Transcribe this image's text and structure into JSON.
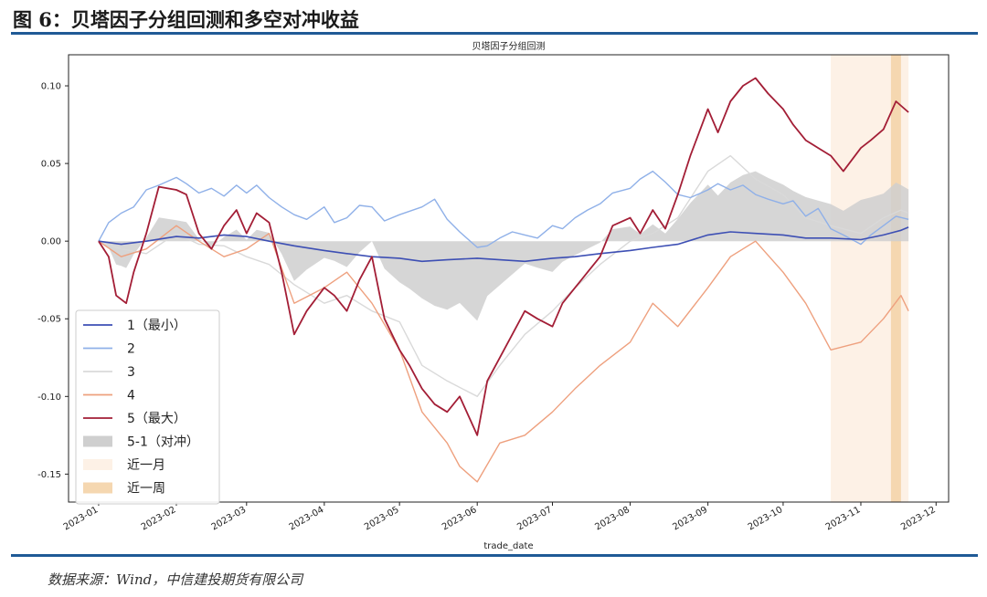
{
  "header": {
    "figure_title": "图 6：贝塔因子分组回测和多空对冲收益"
  },
  "footer": {
    "source": "数据来源：Wind，中信建投期货有限公司"
  },
  "chart_data": {
    "type": "line",
    "title": "贝塔因子分组回测",
    "xlabel": "trade_date",
    "ylabel": "",
    "x_ticks": [
      "2023-01",
      "2023-02",
      "2023-03",
      "2023-04",
      "2023-05",
      "2023-06",
      "2023-07",
      "2023-08",
      "2023-09",
      "2023-10",
      "2023-11",
      "2023-12"
    ],
    "y_ticks": [
      "0.10",
      "0.05",
      "0.00",
      "-0.05",
      "-0.10",
      "-0.15"
    ],
    "xlim": [
      "2022-12-20",
      "2023-12-06"
    ],
    "ylim": [
      -0.168,
      0.12
    ],
    "grid": false,
    "legend_position": "lower-left",
    "shaded_regions": [
      {
        "label": "近一月",
        "start": "2023-10-20",
        "end": "2023-11-20",
        "color": "#fdf1e6"
      },
      {
        "label": "近一周",
        "start": "2023-11-13",
        "end": "2023-11-17",
        "color": "#f5d7b0"
      }
    ],
    "hedge_series": {
      "name": "5-1（对冲）",
      "color": "#cfcfcf"
    },
    "series": [
      {
        "name": "1（最小）",
        "color": "#3d4fb4",
        "width": 1.6,
        "points": [
          [
            "2023-01-01",
            0.0
          ],
          [
            "2023-01-10",
            -0.002
          ],
          [
            "2023-01-20",
            0.0
          ],
          [
            "2023-02-01",
            0.003
          ],
          [
            "2023-02-10",
            0.002
          ],
          [
            "2023-02-20",
            0.004
          ],
          [
            "2023-03-01",
            0.003
          ],
          [
            "2023-03-10",
            0.0
          ],
          [
            "2023-03-20",
            -0.003
          ],
          [
            "2023-04-01",
            -0.006
          ],
          [
            "2023-04-10",
            -0.008
          ],
          [
            "2023-04-20",
            -0.01
          ],
          [
            "2023-05-01",
            -0.011
          ],
          [
            "2023-05-10",
            -0.013
          ],
          [
            "2023-05-20",
            -0.012
          ],
          [
            "2023-06-01",
            -0.011
          ],
          [
            "2023-06-10",
            -0.012
          ],
          [
            "2023-06-20",
            -0.013
          ],
          [
            "2023-07-01",
            -0.011
          ],
          [
            "2023-07-10",
            -0.01
          ],
          [
            "2023-07-20",
            -0.008
          ],
          [
            "2023-08-01",
            -0.006
          ],
          [
            "2023-08-10",
            -0.004
          ],
          [
            "2023-08-20",
            -0.002
          ],
          [
            "2023-09-01",
            0.004
          ],
          [
            "2023-09-10",
            0.006
          ],
          [
            "2023-09-20",
            0.005
          ],
          [
            "2023-10-01",
            0.004
          ],
          [
            "2023-10-10",
            0.002
          ],
          [
            "2023-10-20",
            0.002
          ],
          [
            "2023-11-01",
            0.001
          ],
          [
            "2023-11-10",
            0.004
          ],
          [
            "2023-11-17",
            0.007
          ],
          [
            "2023-11-20",
            0.009
          ]
        ]
      },
      {
        "name": "2",
        "color": "#8fb0e8",
        "width": 1.4,
        "points": [
          [
            "2023-01-01",
            0.0
          ],
          [
            "2023-01-05",
            0.012
          ],
          [
            "2023-01-10",
            0.018
          ],
          [
            "2023-01-15",
            0.022
          ],
          [
            "2023-01-20",
            0.033
          ],
          [
            "2023-01-25",
            0.036
          ],
          [
            "2023-02-01",
            0.041
          ],
          [
            "2023-02-05",
            0.037
          ],
          [
            "2023-02-10",
            0.031
          ],
          [
            "2023-02-15",
            0.034
          ],
          [
            "2023-02-20",
            0.029
          ],
          [
            "2023-02-25",
            0.036
          ],
          [
            "2023-03-01",
            0.031
          ],
          [
            "2023-03-05",
            0.036
          ],
          [
            "2023-03-10",
            0.028
          ],
          [
            "2023-03-15",
            0.022
          ],
          [
            "2023-03-20",
            0.017
          ],
          [
            "2023-03-25",
            0.014
          ],
          [
            "2023-04-01",
            0.022
          ],
          [
            "2023-04-05",
            0.012
          ],
          [
            "2023-04-10",
            0.015
          ],
          [
            "2023-04-15",
            0.023
          ],
          [
            "2023-04-20",
            0.022
          ],
          [
            "2023-04-25",
            0.013
          ],
          [
            "2023-05-01",
            0.017
          ],
          [
            "2023-05-10",
            0.022
          ],
          [
            "2023-05-15",
            0.027
          ],
          [
            "2023-05-20",
            0.014
          ],
          [
            "2023-05-25",
            0.006
          ],
          [
            "2023-06-01",
            -0.004
          ],
          [
            "2023-06-05",
            -0.003
          ],
          [
            "2023-06-10",
            0.002
          ],
          [
            "2023-06-15",
            0.006
          ],
          [
            "2023-06-20",
            0.004
          ],
          [
            "2023-06-25",
            0.002
          ],
          [
            "2023-07-01",
            0.01
          ],
          [
            "2023-07-05",
            0.008
          ],
          [
            "2023-07-10",
            0.015
          ],
          [
            "2023-07-15",
            0.02
          ],
          [
            "2023-07-20",
            0.024
          ],
          [
            "2023-07-25",
            0.031
          ],
          [
            "2023-08-01",
            0.034
          ],
          [
            "2023-08-05",
            0.04
          ],
          [
            "2023-08-10",
            0.045
          ],
          [
            "2023-08-15",
            0.038
          ],
          [
            "2023-08-20",
            0.03
          ],
          [
            "2023-08-25",
            0.028
          ],
          [
            "2023-09-01",
            0.033
          ],
          [
            "2023-09-05",
            0.037
          ],
          [
            "2023-09-10",
            0.033
          ],
          [
            "2023-09-15",
            0.036
          ],
          [
            "2023-09-20",
            0.03
          ],
          [
            "2023-09-25",
            0.027
          ],
          [
            "2023-10-01",
            0.024
          ],
          [
            "2023-10-05",
            0.026
          ],
          [
            "2023-10-10",
            0.016
          ],
          [
            "2023-10-15",
            0.021
          ],
          [
            "2023-10-20",
            0.008
          ],
          [
            "2023-10-25",
            0.004
          ],
          [
            "2023-11-01",
            -0.002
          ],
          [
            "2023-11-05",
            0.004
          ],
          [
            "2023-11-10",
            0.01
          ],
          [
            "2023-11-15",
            0.016
          ],
          [
            "2023-11-20",
            0.014
          ]
        ]
      },
      {
        "name": "3",
        "color": "#d9d9d9",
        "width": 1.4,
        "points": [
          [
            "2023-01-01",
            0.0
          ],
          [
            "2023-01-10",
            -0.005
          ],
          [
            "2023-01-20",
            -0.008
          ],
          [
            "2023-02-01",
            0.005
          ],
          [
            "2023-02-10",
            -0.002
          ],
          [
            "2023-02-20",
            -0.003
          ],
          [
            "2023-03-01",
            -0.01
          ],
          [
            "2023-03-10",
            -0.015
          ],
          [
            "2023-03-20",
            -0.028
          ],
          [
            "2023-04-01",
            -0.04
          ],
          [
            "2023-04-10",
            -0.035
          ],
          [
            "2023-04-20",
            -0.045
          ],
          [
            "2023-05-01",
            -0.052
          ],
          [
            "2023-05-10",
            -0.08
          ],
          [
            "2023-05-20",
            -0.09
          ],
          [
            "2023-06-01",
            -0.1
          ],
          [
            "2023-06-10",
            -0.08
          ],
          [
            "2023-06-20",
            -0.06
          ],
          [
            "2023-07-01",
            -0.045
          ],
          [
            "2023-07-10",
            -0.03
          ],
          [
            "2023-07-20",
            -0.015
          ],
          [
            "2023-08-01",
            0.0
          ],
          [
            "2023-08-10",
            0.005
          ],
          [
            "2023-08-20",
            0.015
          ],
          [
            "2023-09-01",
            0.045
          ],
          [
            "2023-09-10",
            0.055
          ],
          [
            "2023-09-20",
            0.04
          ],
          [
            "2023-10-01",
            0.03
          ],
          [
            "2023-10-10",
            0.015
          ],
          [
            "2023-10-20",
            0.01
          ],
          [
            "2023-11-01",
            0.005
          ],
          [
            "2023-11-10",
            0.015
          ],
          [
            "2023-11-17",
            0.02
          ],
          [
            "2023-11-20",
            0.018
          ]
        ]
      },
      {
        "name": "4",
        "color": "#eea07e",
        "width": 1.4,
        "points": [
          [
            "2023-01-01",
            0.0
          ],
          [
            "2023-01-10",
            -0.01
          ],
          [
            "2023-01-20",
            -0.005
          ],
          [
            "2023-02-01",
            0.01
          ],
          [
            "2023-02-10",
            0.0
          ],
          [
            "2023-02-20",
            -0.01
          ],
          [
            "2023-03-01",
            -0.005
          ],
          [
            "2023-03-10",
            0.005
          ],
          [
            "2023-03-20",
            -0.04
          ],
          [
            "2023-04-01",
            -0.03
          ],
          [
            "2023-04-10",
            -0.02
          ],
          [
            "2023-04-20",
            -0.04
          ],
          [
            "2023-05-01",
            -0.07
          ],
          [
            "2023-05-10",
            -0.11
          ],
          [
            "2023-05-20",
            -0.13
          ],
          [
            "2023-05-25",
            -0.145
          ],
          [
            "2023-06-01",
            -0.155
          ],
          [
            "2023-06-10",
            -0.13
          ],
          [
            "2023-06-20",
            -0.125
          ],
          [
            "2023-07-01",
            -0.11
          ],
          [
            "2023-07-10",
            -0.095
          ],
          [
            "2023-07-20",
            -0.08
          ],
          [
            "2023-08-01",
            -0.065
          ],
          [
            "2023-08-10",
            -0.04
          ],
          [
            "2023-08-20",
            -0.055
          ],
          [
            "2023-09-01",
            -0.03
          ],
          [
            "2023-09-10",
            -0.01
          ],
          [
            "2023-09-20",
            0.0
          ],
          [
            "2023-10-01",
            -0.02
          ],
          [
            "2023-10-10",
            -0.04
          ],
          [
            "2023-10-20",
            -0.07
          ],
          [
            "2023-11-01",
            -0.065
          ],
          [
            "2023-11-10",
            -0.05
          ],
          [
            "2023-11-17",
            -0.035
          ],
          [
            "2023-11-20",
            -0.045
          ]
        ]
      },
      {
        "name": "5（最大）",
        "color": "#a31e36",
        "width": 1.8,
        "points": [
          [
            "2023-01-01",
            0.0
          ],
          [
            "2023-01-05",
            -0.01
          ],
          [
            "2023-01-08",
            -0.035
          ],
          [
            "2023-01-12",
            -0.04
          ],
          [
            "2023-01-15",
            -0.02
          ],
          [
            "2023-01-20",
            0.005
          ],
          [
            "2023-01-25",
            0.035
          ],
          [
            "2023-02-01",
            0.033
          ],
          [
            "2023-02-05",
            0.03
          ],
          [
            "2023-02-10",
            0.005
          ],
          [
            "2023-02-15",
            -0.005
          ],
          [
            "2023-02-20",
            0.01
          ],
          [
            "2023-02-25",
            0.02
          ],
          [
            "2023-03-01",
            0.005
          ],
          [
            "2023-03-05",
            0.018
          ],
          [
            "2023-03-10",
            0.012
          ],
          [
            "2023-03-15",
            -0.02
          ],
          [
            "2023-03-20",
            -0.06
          ],
          [
            "2023-03-25",
            -0.045
          ],
          [
            "2023-04-01",
            -0.03
          ],
          [
            "2023-04-05",
            -0.035
          ],
          [
            "2023-04-10",
            -0.045
          ],
          [
            "2023-04-15",
            -0.025
          ],
          [
            "2023-04-20",
            -0.01
          ],
          [
            "2023-04-25",
            -0.05
          ],
          [
            "2023-05-01",
            -0.07
          ],
          [
            "2023-05-05",
            -0.08
          ],
          [
            "2023-05-10",
            -0.095
          ],
          [
            "2023-05-15",
            -0.105
          ],
          [
            "2023-05-20",
            -0.11
          ],
          [
            "2023-05-25",
            -0.1
          ],
          [
            "2023-06-01",
            -0.125
          ],
          [
            "2023-06-05",
            -0.09
          ],
          [
            "2023-06-10",
            -0.075
          ],
          [
            "2023-06-15",
            -0.06
          ],
          [
            "2023-06-20",
            -0.045
          ],
          [
            "2023-06-25",
            -0.05
          ],
          [
            "2023-07-01",
            -0.055
          ],
          [
            "2023-07-05",
            -0.04
          ],
          [
            "2023-07-10",
            -0.03
          ],
          [
            "2023-07-15",
            -0.02
          ],
          [
            "2023-07-20",
            -0.01
          ],
          [
            "2023-07-25",
            0.01
          ],
          [
            "2023-08-01",
            0.015
          ],
          [
            "2023-08-05",
            0.005
          ],
          [
            "2023-08-10",
            0.02
          ],
          [
            "2023-08-15",
            0.008
          ],
          [
            "2023-08-20",
            0.03
          ],
          [
            "2023-08-25",
            0.055
          ],
          [
            "2023-09-01",
            0.085
          ],
          [
            "2023-09-05",
            0.07
          ],
          [
            "2023-09-10",
            0.09
          ],
          [
            "2023-09-15",
            0.1
          ],
          [
            "2023-09-20",
            0.105
          ],
          [
            "2023-09-25",
            0.095
          ],
          [
            "2023-10-01",
            0.085
          ],
          [
            "2023-10-05",
            0.075
          ],
          [
            "2023-10-10",
            0.065
          ],
          [
            "2023-10-15",
            0.06
          ],
          [
            "2023-10-20",
            0.055
          ],
          [
            "2023-10-25",
            0.045
          ],
          [
            "2023-11-01",
            0.06
          ],
          [
            "2023-11-05",
            0.065
          ],
          [
            "2023-11-10",
            0.072
          ],
          [
            "2023-11-15",
            0.09
          ],
          [
            "2023-11-20",
            0.083
          ]
        ]
      }
    ]
  }
}
